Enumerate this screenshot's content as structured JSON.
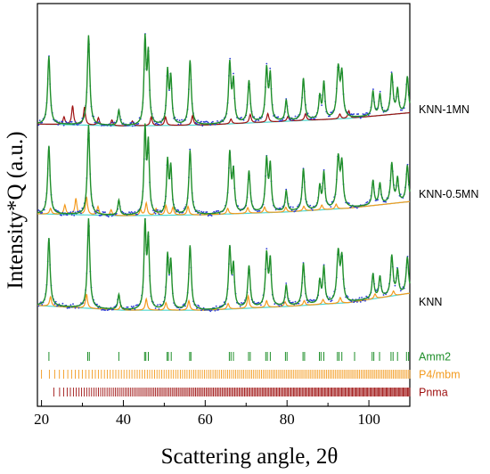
{
  "chart_data": {
    "type": "line",
    "xlabel": "Scattering angle, 2θ",
    "ylabel": "Intensity*Q (a.u.)",
    "xlim": [
      19,
      110
    ],
    "x_ticks": [
      20,
      40,
      60,
      80,
      100
    ],
    "x_ticks_labels": [
      "20",
      "40",
      "60",
      "80",
      "100"
    ],
    "y_tick_labels_shown": false,
    "grid": false,
    "colors": {
      "observed": "#2b3bd6",
      "fit": "#1f8f2a",
      "background": "#4fd8d0",
      "p4mbm": "#f39a1e",
      "pnma": "#9e1010",
      "amm2": "#1f8f2a"
    },
    "peaks": [
      {
        "pos": 21.8,
        "h": 0.72,
        "w": 0.35
      },
      {
        "pos": 31.5,
        "h": 0.95,
        "w": 0.35
      },
      {
        "pos": 38.9,
        "h": 0.16,
        "w": 0.3
      },
      {
        "pos": 45.3,
        "h": 0.88,
        "w": 0.3
      },
      {
        "pos": 46.1,
        "h": 0.72,
        "w": 0.3
      },
      {
        "pos": 50.8,
        "h": 0.55,
        "w": 0.3
      },
      {
        "pos": 51.6,
        "h": 0.48,
        "w": 0.3
      },
      {
        "pos": 56.3,
        "h": 0.68,
        "w": 0.35
      },
      {
        "pos": 66.0,
        "h": 0.63,
        "w": 0.35
      },
      {
        "pos": 66.9,
        "h": 0.42,
        "w": 0.3
      },
      {
        "pos": 70.7,
        "h": 0.44,
        "w": 0.35
      },
      {
        "pos": 75.0,
        "h": 0.55,
        "w": 0.35
      },
      {
        "pos": 75.9,
        "h": 0.47,
        "w": 0.3
      },
      {
        "pos": 79.8,
        "h": 0.22,
        "w": 0.3
      },
      {
        "pos": 84.0,
        "h": 0.44,
        "w": 0.35
      },
      {
        "pos": 88.0,
        "h": 0.24,
        "w": 0.3
      },
      {
        "pos": 89.0,
        "h": 0.38,
        "w": 0.3
      },
      {
        "pos": 92.5,
        "h": 0.52,
        "w": 0.4
      },
      {
        "pos": 93.4,
        "h": 0.45,
        "w": 0.35
      },
      {
        "pos": 101.0,
        "h": 0.26,
        "w": 0.3
      },
      {
        "pos": 102.7,
        "h": 0.22,
        "w": 0.3
      },
      {
        "pos": 105.6,
        "h": 0.42,
        "w": 0.35
      },
      {
        "pos": 107.0,
        "h": 0.25,
        "w": 0.3
      },
      {
        "pos": 109.4,
        "h": 0.38,
        "w": 0.35
      }
    ],
    "series": [
      {
        "name": "KNN-1MN",
        "offset": 2.25,
        "background": [
          [
            19,
            0.02
          ],
          [
            40,
            0.0
          ],
          [
            60,
            0.01
          ],
          [
            80,
            0.05
          ],
          [
            95,
            0.08
          ],
          [
            110,
            0.14
          ]
        ],
        "secondary_phase": "Pnma",
        "secondary_peaks": [
          [
            25.5,
            0.08
          ],
          [
            27.6,
            0.2
          ],
          [
            30.5,
            0.19
          ],
          [
            33.9,
            0.08
          ],
          [
            37.2,
            0.06
          ],
          [
            42.2,
            0.05
          ],
          [
            46.8,
            0.09
          ],
          [
            50.3,
            0.09
          ],
          [
            56.9,
            0.1
          ],
          [
            66.3,
            0.05
          ],
          [
            71.0,
            0.09
          ],
          [
            75.3,
            0.09
          ],
          [
            80.2,
            0.05
          ],
          [
            84.5,
            0.07
          ],
          [
            92.9,
            0.05
          ],
          [
            95.1,
            0.08
          ]
        ]
      },
      {
        "name": "KNN-0.5MN",
        "offset": 1.3,
        "background": [
          [
            19,
            0.02
          ],
          [
            40,
            0.0
          ],
          [
            60,
            0.01
          ],
          [
            80,
            0.04
          ],
          [
            95,
            0.08
          ],
          [
            110,
            0.15
          ]
        ],
        "secondary_phase": "P4/mbm",
        "secondary_peaks": [
          [
            22.2,
            0.06
          ],
          [
            25.7,
            0.1
          ],
          [
            28.4,
            0.17
          ],
          [
            31.0,
            0.19
          ],
          [
            33.8,
            0.09
          ],
          [
            37.0,
            0.06
          ],
          [
            44.2,
            0.06
          ],
          [
            45.6,
            0.13
          ],
          [
            48.0,
            0.07
          ],
          [
            50.4,
            0.1
          ],
          [
            52.1,
            0.08
          ],
          [
            55.8,
            0.09
          ],
          [
            65.5,
            0.06
          ],
          [
            70.4,
            0.06
          ],
          [
            74.5,
            0.06
          ],
          [
            79.7,
            0.05
          ],
          [
            84.1,
            0.05
          ],
          [
            88.5,
            0.05
          ],
          [
            92.0,
            0.05
          ]
        ]
      },
      {
        "name": "KNN",
        "offset": 0.3,
        "background": [
          [
            19,
            0.05
          ],
          [
            40,
            0.0
          ],
          [
            60,
            0.0
          ],
          [
            80,
            0.04
          ],
          [
            95,
            0.08
          ],
          [
            110,
            0.18
          ]
        ],
        "secondary_phase": "P4/mbm",
        "secondary_peaks": [
          [
            22.2,
            0.1
          ],
          [
            31.0,
            0.15
          ],
          [
            39.4,
            0.05
          ],
          [
            45.6,
            0.12
          ],
          [
            50.4,
            0.08
          ],
          [
            56.0,
            0.1
          ],
          [
            65.6,
            0.06
          ],
          [
            70.5,
            0.13
          ],
          [
            75.0,
            0.07
          ],
          [
            79.5,
            0.05
          ],
          [
            84.2,
            0.05
          ],
          [
            88.8,
            0.05
          ],
          [
            93.0,
            0.06
          ],
          [
            101.5,
            0.05
          ],
          [
            106.0,
            0.05
          ]
        ]
      }
    ],
    "tick_marks": [
      {
        "name": "Amm2",
        "color": "#1f8f2a",
        "positions": [
          21.8,
          31.3,
          31.7,
          38.9,
          45.2,
          45.5,
          46.1,
          50.7,
          51.0,
          51.7,
          56.2,
          56.5,
          65.9,
          66.3,
          66.9,
          70.6,
          71.0,
          74.8,
          75.2,
          75.9,
          79.6,
          80.0,
          83.9,
          84.3,
          87.9,
          88.3,
          89.0,
          92.3,
          92.7,
          93.4,
          96.5,
          100.8,
          101.2,
          102.6,
          105.4,
          105.9,
          107.0,
          109.2,
          109.7
        ]
      }
    ],
    "dense_tick_rows": [
      {
        "name": "P4/mbm",
        "color": "#f39a1e",
        "start": 20,
        "end": 110,
        "count": 170
      },
      {
        "name": "Pnma",
        "color": "#9e1010",
        "start": 23,
        "end": 110,
        "count": 240
      }
    ]
  }
}
